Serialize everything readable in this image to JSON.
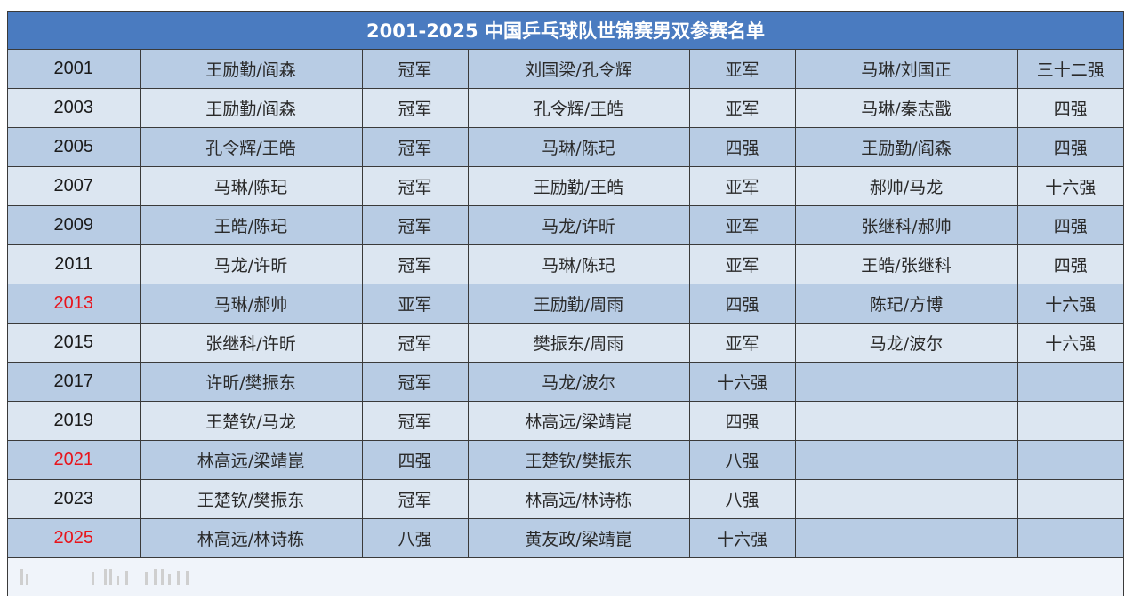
{
  "title": "2001-2025 中国乒乓球队世锦赛男双参赛名单",
  "colors": {
    "header_bg": "#4a7bc0",
    "row_dark": "#b8cce4",
    "row_light": "#dce6f1",
    "highlight_year": "#e8141b"
  },
  "rows": [
    {
      "year": "2001",
      "highlight": false,
      "p1": "王励勤/阎森",
      "r1": "冠军",
      "p2": "刘国梁/孔令辉",
      "r2": "亚军",
      "p3": "马琳/刘国正",
      "r3": "三十二强"
    },
    {
      "year": "2003",
      "highlight": false,
      "p1": "王励勤/阎森",
      "r1": "冠军",
      "p2": "孔令辉/王皓",
      "r2": "亚军",
      "p3": "马琳/秦志戬",
      "r3": "四强"
    },
    {
      "year": "2005",
      "highlight": false,
      "p1": "孔令辉/王皓",
      "r1": "冠军",
      "p2": "马琳/陈玘",
      "r2": "四强",
      "p3": "王励勤/阎森",
      "r3": "四强"
    },
    {
      "year": "2007",
      "highlight": false,
      "p1": "马琳/陈玘",
      "r1": "冠军",
      "p2": "王励勤/王皓",
      "r2": "亚军",
      "p3": "郝帅/马龙",
      "r3": "十六强"
    },
    {
      "year": "2009",
      "highlight": false,
      "p1": "王皓/陈玘",
      "r1": "冠军",
      "p2": "马龙/许昕",
      "r2": "亚军",
      "p3": "张继科/郝帅",
      "r3": "四强"
    },
    {
      "year": "2011",
      "highlight": false,
      "p1": "马龙/许昕",
      "r1": "冠军",
      "p2": "马琳/陈玘",
      "r2": "亚军",
      "p3": "王皓/张继科",
      "r3": "四强"
    },
    {
      "year": "2013",
      "highlight": true,
      "p1": "马琳/郝帅",
      "r1": "亚军",
      "p2": "王励勤/周雨",
      "r2": "四强",
      "p3": "陈玘/方博",
      "r3": "十六强"
    },
    {
      "year": "2015",
      "highlight": false,
      "p1": "张继科/许昕",
      "r1": "冠军",
      "p2": "樊振东/周雨",
      "r2": "亚军",
      "p3": "马龙/波尔",
      "r3": "十六强"
    },
    {
      "year": "2017",
      "highlight": false,
      "p1": "许昕/樊振东",
      "r1": "冠军",
      "p2": "马龙/波尔",
      "r2": "十六强",
      "p3": "",
      "r3": ""
    },
    {
      "year": "2019",
      "highlight": false,
      "p1": "王楚钦/马龙",
      "r1": "冠军",
      "p2": "林高远/梁靖崑",
      "r2": "四强",
      "p3": "",
      "r3": ""
    },
    {
      "year": "2021",
      "highlight": true,
      "p1": "林高远/梁靖崑",
      "r1": "四强",
      "p2": "王楚钦/樊振东",
      "r2": "八强",
      "p3": "",
      "r3": ""
    },
    {
      "year": "2023",
      "highlight": false,
      "p1": "王楚钦/樊振东",
      "r1": "冠军",
      "p2": "林高远/林诗栋",
      "r2": "八强",
      "p3": "",
      "r3": ""
    },
    {
      "year": "2025",
      "highlight": true,
      "p1": "林高远/林诗栋",
      "r1": "八强",
      "p2": "黄友政/梁靖崑",
      "r2": "十六强",
      "p3": "",
      "r3": ""
    }
  ]
}
